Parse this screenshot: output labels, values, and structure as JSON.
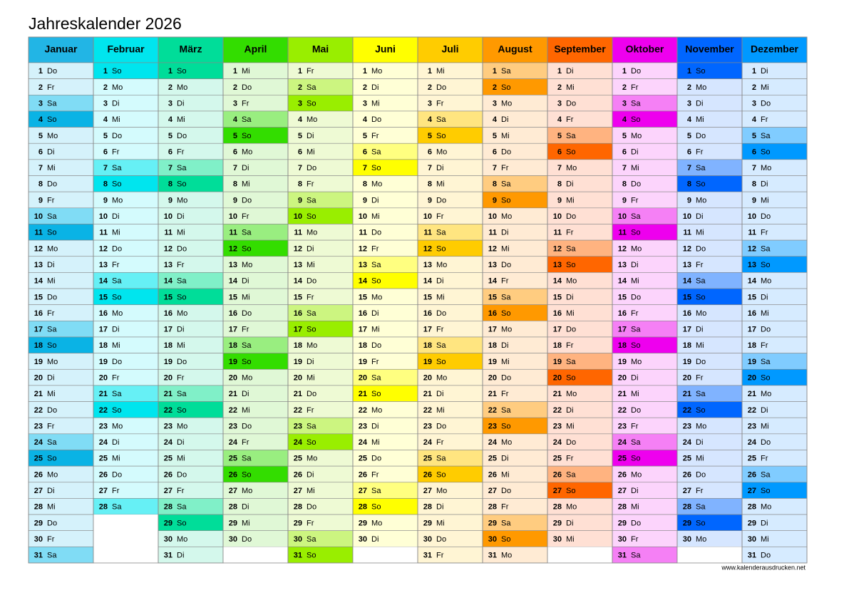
{
  "header": {
    "title": "Jahreskalender 2026"
  },
  "months": [
    {
      "name": "Januar",
      "colors": {
        "header": "#22b5e5",
        "day": "#d5f2fb",
        "Sa": "#80dcf5",
        "So": "#0ab3e5"
      },
      "days": [
        1,
        2,
        3,
        4,
        5,
        6,
        7,
        8,
        9,
        10,
        11,
        12,
        13,
        14,
        15,
        16,
        17,
        18,
        19,
        20,
        21,
        22,
        23,
        24,
        25,
        26,
        27,
        28,
        29,
        30,
        31
      ],
      "weekdays": [
        "Do",
        "Fr",
        "Sa",
        "So",
        "Mo",
        "Di",
        "Mi",
        "Do",
        "Fr",
        "Sa",
        "So",
        "Mo",
        "Di",
        "Mi",
        "Do",
        "Fr",
        "Sa",
        "So",
        "Mo",
        "Di",
        "Mi",
        "Do",
        "Fr",
        "Sa",
        "So",
        "Mo",
        "Di",
        "Mi",
        "Do",
        "Fr",
        "Sa"
      ]
    },
    {
      "name": "Februar",
      "colors": {
        "header": "#00e5ee",
        "day": "#d4fbfd",
        "Sa": "#66f0f5",
        "So": "#00e5ee"
      },
      "days": [
        1,
        2,
        3,
        4,
        5,
        6,
        7,
        8,
        9,
        10,
        11,
        12,
        13,
        14,
        15,
        16,
        17,
        18,
        19,
        20,
        21,
        22,
        23,
        24,
        25,
        26,
        27,
        28
      ],
      "weekdays": [
        "So",
        "Mo",
        "Di",
        "Mi",
        "Do",
        "Fr",
        "Sa",
        "So",
        "Mo",
        "Di",
        "Mi",
        "Do",
        "Fr",
        "Sa",
        "So",
        "Mo",
        "Di",
        "Mi",
        "Do",
        "Fr",
        "Sa",
        "So",
        "Mo",
        "Di",
        "Mi",
        "Do",
        "Fr",
        "Sa"
      ]
    },
    {
      "name": "März",
      "colors": {
        "header": "#00dd99",
        "day": "#d4f8ec",
        "Sa": "#80f0c8",
        "So": "#00dd99"
      },
      "days": [
        1,
        2,
        3,
        4,
        5,
        6,
        7,
        8,
        9,
        10,
        11,
        12,
        13,
        14,
        15,
        16,
        17,
        18,
        19,
        20,
        21,
        22,
        23,
        24,
        25,
        26,
        27,
        28,
        29,
        30,
        31
      ],
      "weekdays": [
        "So",
        "Mo",
        "Di",
        "Mi",
        "Do",
        "Fr",
        "Sa",
        "So",
        "Mo",
        "Di",
        "Mi",
        "Do",
        "Fr",
        "Sa",
        "So",
        "Mo",
        "Di",
        "Mi",
        "Do",
        "Fr",
        "Sa",
        "So",
        "Mo",
        "Di",
        "Mi",
        "Do",
        "Fr",
        "Sa",
        "So",
        "Mo",
        "Di"
      ]
    },
    {
      "name": "April",
      "colors": {
        "header": "#33dd00",
        "day": "#e0f8d6",
        "Sa": "#99ee80",
        "So": "#33dd00"
      },
      "days": [
        1,
        2,
        3,
        4,
        5,
        6,
        7,
        8,
        9,
        10,
        11,
        12,
        13,
        14,
        15,
        16,
        17,
        18,
        19,
        20,
        21,
        22,
        23,
        24,
        25,
        26,
        27,
        28,
        29,
        30
      ],
      "weekdays": [
        "Mi",
        "Do",
        "Fr",
        "Sa",
        "So",
        "Mo",
        "Di",
        "Mi",
        "Do",
        "Fr",
        "Sa",
        "So",
        "Mo",
        "Di",
        "Mi",
        "Do",
        "Fr",
        "Sa",
        "So",
        "Mo",
        "Di",
        "Mi",
        "Do",
        "Fr",
        "Sa",
        "So",
        "Mo",
        "Di",
        "Mi",
        "Do"
      ]
    },
    {
      "name": "Mai",
      "colors": {
        "header": "#99ee00",
        "day": "#eefad4",
        "Sa": "#ccf580",
        "So": "#99ee00"
      },
      "days": [
        1,
        2,
        3,
        4,
        5,
        6,
        7,
        8,
        9,
        10,
        11,
        12,
        13,
        14,
        15,
        16,
        17,
        18,
        19,
        20,
        21,
        22,
        23,
        24,
        25,
        26,
        27,
        28,
        29,
        30,
        31
      ],
      "weekdays": [
        "Fr",
        "Sa",
        "So",
        "Mo",
        "Di",
        "Mi",
        "Do",
        "Fr",
        "Sa",
        "So",
        "Mo",
        "Di",
        "Mi",
        "Do",
        "Fr",
        "Sa",
        "So",
        "Mo",
        "Di",
        "Mi",
        "Do",
        "Fr",
        "Sa",
        "So",
        "Mo",
        "Di",
        "Mi",
        "Do",
        "Fr",
        "Sa",
        "So"
      ]
    },
    {
      "name": "Juni",
      "colors": {
        "header": "#ffff00",
        "day": "#ffffd6",
        "Sa": "#ffff80",
        "So": "#ffff00"
      },
      "days": [
        1,
        2,
        3,
        4,
        5,
        6,
        7,
        8,
        9,
        10,
        11,
        12,
        13,
        14,
        15,
        16,
        17,
        18,
        19,
        20,
        21,
        22,
        23,
        24,
        25,
        26,
        27,
        28,
        29,
        30
      ],
      "weekdays": [
        "Mo",
        "Di",
        "Mi",
        "Do",
        "Fr",
        "Sa",
        "So",
        "Mo",
        "Di",
        "Mi",
        "Do",
        "Fr",
        "Sa",
        "So",
        "Mo",
        "Di",
        "Mi",
        "Do",
        "Fr",
        "Sa",
        "So",
        "Mo",
        "Di",
        "Mi",
        "Do",
        "Fr",
        "Sa",
        "So",
        "Mo",
        "Di"
      ]
    },
    {
      "name": "Juli",
      "colors": {
        "header": "#ffcc00",
        "day": "#fff5d4",
        "Sa": "#ffe580",
        "So": "#ffcc00"
      },
      "days": [
        1,
        2,
        3,
        4,
        5,
        6,
        7,
        8,
        9,
        10,
        11,
        12,
        13,
        14,
        15,
        16,
        17,
        18,
        19,
        20,
        21,
        22,
        23,
        24,
        25,
        26,
        27,
        28,
        29,
        30,
        31
      ],
      "weekdays": [
        "Mi",
        "Do",
        "Fr",
        "Sa",
        "So",
        "Mo",
        "Di",
        "Mi",
        "Do",
        "Fr",
        "Sa",
        "So",
        "Mo",
        "Di",
        "Mi",
        "Do",
        "Fr",
        "Sa",
        "So",
        "Mo",
        "Di",
        "Mi",
        "Do",
        "Fr",
        "Sa",
        "So",
        "Mo",
        "Di",
        "Mi",
        "Do",
        "Fr"
      ]
    },
    {
      "name": "August",
      "colors": {
        "header": "#ff9900",
        "day": "#ffebd4",
        "Sa": "#ffcc80",
        "So": "#ff9900"
      },
      "days": [
        1,
        2,
        3,
        4,
        5,
        6,
        7,
        8,
        9,
        10,
        11,
        12,
        13,
        14,
        15,
        16,
        17,
        18,
        19,
        20,
        21,
        22,
        23,
        24,
        25,
        26,
        27,
        28,
        29,
        30,
        31
      ],
      "weekdays": [
        "Sa",
        "So",
        "Mo",
        "Di",
        "Mi",
        "Do",
        "Fr",
        "Sa",
        "So",
        "Mo",
        "Di",
        "Mi",
        "Do",
        "Fr",
        "Sa",
        "So",
        "Mo",
        "Di",
        "Mi",
        "Do",
        "Fr",
        "Sa",
        "So",
        "Mo",
        "Di",
        "Mi",
        "Do",
        "Fr",
        "Sa",
        "So",
        "Mo"
      ]
    },
    {
      "name": "September",
      "colors": {
        "header": "#ff6600",
        "day": "#ffe0d4",
        "Sa": "#ffb380",
        "So": "#ff6600"
      },
      "days": [
        1,
        2,
        3,
        4,
        5,
        6,
        7,
        8,
        9,
        10,
        11,
        12,
        13,
        14,
        15,
        16,
        17,
        18,
        19,
        20,
        21,
        22,
        23,
        24,
        25,
        26,
        27,
        28,
        29,
        30
      ],
      "weekdays": [
        "Di",
        "Mi",
        "Do",
        "Fr",
        "Sa",
        "So",
        "Mo",
        "Di",
        "Mi",
        "Do",
        "Fr",
        "Sa",
        "So",
        "Mo",
        "Di",
        "Mi",
        "Do",
        "Fr",
        "Sa",
        "So",
        "Mo",
        "Di",
        "Mi",
        "Do",
        "Fr",
        "Sa",
        "So",
        "Mo",
        "Di",
        "Mi"
      ]
    },
    {
      "name": "Oktober",
      "colors": {
        "header": "#ee00ee",
        "day": "#fcd4fc",
        "Sa": "#f580f5",
        "So": "#ee00ee"
      },
      "days": [
        1,
        2,
        3,
        4,
        5,
        6,
        7,
        8,
        9,
        10,
        11,
        12,
        13,
        14,
        15,
        16,
        17,
        18,
        19,
        20,
        21,
        22,
        23,
        24,
        25,
        26,
        27,
        28,
        29,
        30,
        31
      ],
      "weekdays": [
        "Do",
        "Fr",
        "Sa",
        "So",
        "Mo",
        "Di",
        "Mi",
        "Do",
        "Fr",
        "Sa",
        "So",
        "Mo",
        "Di",
        "Mi",
        "Do",
        "Fr",
        "Sa",
        "So",
        "Mo",
        "Di",
        "Mi",
        "Do",
        "Fr",
        "Sa",
        "So",
        "Mo",
        "Di",
        "Mi",
        "Do",
        "Fr",
        "Sa"
      ]
    },
    {
      "name": "November",
      "colors": {
        "header": "#0066ff",
        "day": "#d6e6ff",
        "Sa": "#80b3ff",
        "So": "#0066ff"
      },
      "days": [
        1,
        2,
        3,
        4,
        5,
        6,
        7,
        8,
        9,
        10,
        11,
        12,
        13,
        14,
        15,
        16,
        17,
        18,
        19,
        20,
        21,
        22,
        23,
        24,
        25,
        26,
        27,
        28,
        29,
        30
      ],
      "weekdays": [
        "So",
        "Mo",
        "Di",
        "Mi",
        "Do",
        "Fr",
        "Sa",
        "So",
        "Mo",
        "Di",
        "Mi",
        "Do",
        "Fr",
        "Sa",
        "So",
        "Mo",
        "Di",
        "Mi",
        "Do",
        "Fr",
        "Sa",
        "So",
        "Mo",
        "Di",
        "Mi",
        "Do",
        "Fr",
        "Sa",
        "So",
        "Mo"
      ]
    },
    {
      "name": "Dezember",
      "colors": {
        "header": "#0099ff",
        "day": "#d6ebff",
        "Sa": "#80ccff",
        "So": "#0099ff"
      },
      "days": [
        1,
        2,
        3,
        4,
        5,
        6,
        7,
        8,
        9,
        10,
        11,
        12,
        13,
        14,
        15,
        16,
        17,
        18,
        19,
        20,
        21,
        22,
        23,
        24,
        25,
        26,
        27,
        28,
        29,
        30,
        31
      ],
      "weekdays": [
        "Di",
        "Mi",
        "Do",
        "Fr",
        "Sa",
        "So",
        "Mo",
        "Di",
        "Mi",
        "Do",
        "Fr",
        "Sa",
        "So",
        "Mo",
        "Di",
        "Mi",
        "Do",
        "Fr",
        "Sa",
        "So",
        "Mo",
        "Di",
        "Mi",
        "Do",
        "Fr",
        "Sa",
        "So",
        "Mo",
        "Di",
        "Mi",
        "Do"
      ]
    }
  ],
  "footer": {
    "source": "www.kalenderausdrucken.net"
  }
}
